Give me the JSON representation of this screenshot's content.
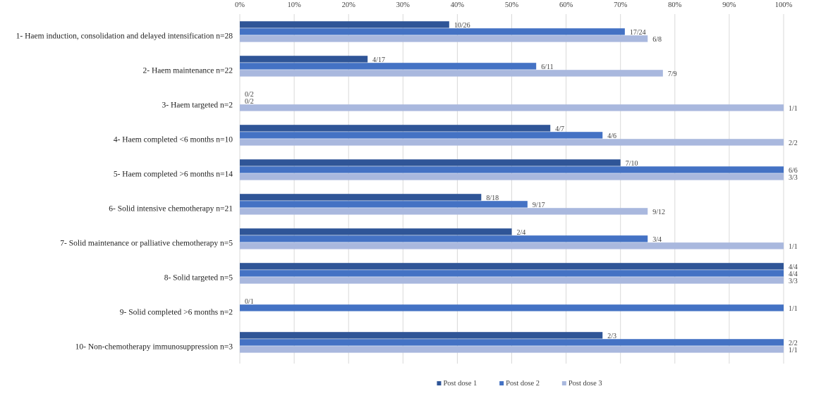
{
  "chart_data": {
    "type": "bar",
    "orientation": "horizontal",
    "title": "",
    "xlabel": "",
    "ylabel": "",
    "xlim": [
      0,
      100
    ],
    "x_ticks": [
      "0%",
      "10%",
      "20%",
      "30%",
      "40%",
      "50%",
      "60%",
      "70%",
      "80%",
      "90%",
      "100%"
    ],
    "grid": true,
    "legend_position": "bottom",
    "categories": [
      "1- Haem induction, consolidation and delayed intensification n=28",
      "2- Haem maintenance n=22",
      "3- Haem targeted n=2",
      "4- Haem completed <6 months n=10",
      "5- Haem completed >6 months n=14",
      "6- Solid intensive chemotherapy n=21",
      "7- Solid maintenance or palliative chemotherapy n=5",
      "8- Solid targeted n=5",
      "9- Solid completed >6 months n=2",
      "10- Non-chemotherapy immunosuppression n=3"
    ],
    "series": [
      {
        "name": "Post dose 1",
        "color": "#2f5597",
        "values": [
          38.5,
          23.5,
          0,
          57.1,
          70,
          44.4,
          50,
          100,
          0,
          66.7
        ],
        "labels": [
          "10/26",
          "4/17",
          "0/2",
          "4/7",
          "7/10",
          "8/18",
          "2/4",
          "4/4",
          "0/1",
          "2/3"
        ]
      },
      {
        "name": "Post dose 2",
        "color": "#4472c4",
        "values": [
          70.8,
          54.5,
          0,
          66.7,
          100,
          52.9,
          75,
          100,
          100,
          100
        ],
        "labels": [
          "17/24",
          "6/11",
          "0/2",
          "4/6",
          "6/6",
          "9/17",
          "3/4",
          "4/4",
          "1/1",
          "2/2"
        ]
      },
      {
        "name": "Post dose 3",
        "color": "#a9b8de",
        "values": [
          75,
          77.8,
          100,
          100,
          100,
          75,
          100,
          100,
          null,
          100
        ],
        "labels": [
          "6/8",
          "7/9",
          "1/1",
          "2/2",
          "3/3",
          "9/12",
          "1/1",
          "3/3",
          "",
          "1/1"
        ]
      }
    ]
  }
}
